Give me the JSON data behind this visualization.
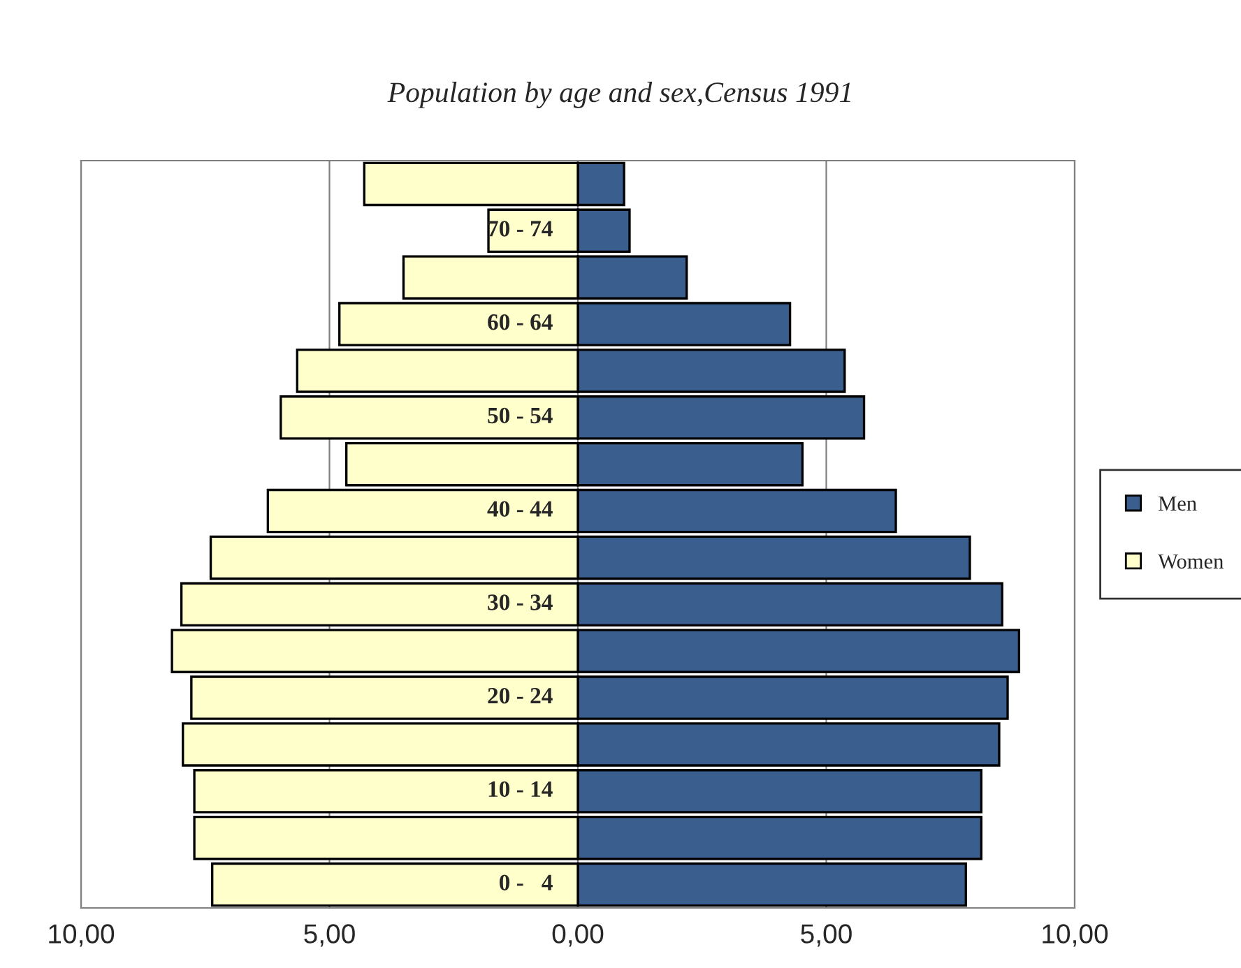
{
  "chart_data": {
    "type": "bar",
    "orientation": "horizontal",
    "title": "Population by age and sex,Census 1991",
    "categories": [
      null,
      "70 - 74",
      null,
      "60 - 64",
      null,
      "50 - 54",
      null,
      "40 - 44",
      null,
      "30 - 34",
      null,
      "20 - 24",
      null,
      "10 - 14",
      null,
      "0 -   4"
    ],
    "series": [
      {
        "name": "Men",
        "color": "#3a5f8f",
        "values": [
          0.93,
          1.04,
          2.19,
          4.27,
          5.37,
          5.76,
          4.52,
          6.4,
          7.89,
          8.54,
          8.88,
          8.65,
          8.48,
          8.12,
          8.12,
          7.81
        ]
      },
      {
        "name": "Women",
        "color": "#ffffcc",
        "values": [
          -4.3,
          -1.8,
          -3.51,
          -4.8,
          -5.65,
          -5.98,
          -4.66,
          -6.24,
          -7.39,
          -7.98,
          -8.17,
          -7.78,
          -7.95,
          -7.72,
          -7.72,
          -7.36
        ]
      }
    ],
    "xlim": [
      -10,
      10
    ],
    "xticks": [
      {
        "value": -10,
        "label": "10,00"
      },
      {
        "value": -5,
        "label": "5,00"
      },
      {
        "value": 0,
        "label": "0,00"
      },
      {
        "value": 5,
        "label": "5,00"
      },
      {
        "value": 10,
        "label": "10,00"
      }
    ],
    "grid": "x",
    "legend": "right",
    "stacked": true
  }
}
